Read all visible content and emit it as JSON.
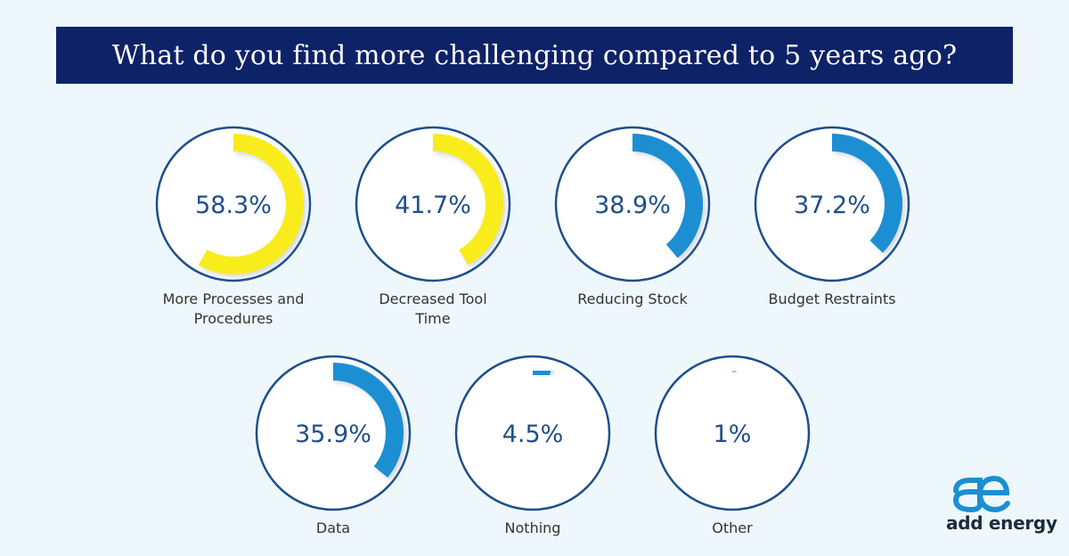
{
  "title": "What do you find more challenging compared to 5 years ago?",
  "colors": {
    "background": "#eef8fc",
    "title_bar": "#0e2267",
    "circle_stroke": "#1f4e8a",
    "value_text": "#1f4e8a",
    "label_text": "#333333",
    "yellow": "#f9ec1c",
    "blue": "#1a8fd2"
  },
  "chart_data": {
    "type": "donut",
    "title": "What do you find more challenging compared to 5 years ago?",
    "unit": "%",
    "items": [
      {
        "label": "More Processes and Procedures",
        "value": 58.3,
        "display": "58.3%",
        "color": "yellow"
      },
      {
        "label": "Decreased Tool Time",
        "value": 41.7,
        "display": "41.7%",
        "color": "yellow"
      },
      {
        "label": "Reducing Stock",
        "value": 38.9,
        "display": "38.9%",
        "color": "blue"
      },
      {
        "label": "Budget Restraints",
        "value": 37.2,
        "display": "37.2%",
        "color": "blue"
      },
      {
        "label": "Data",
        "value": 35.9,
        "display": "35.9%",
        "color": "blue"
      },
      {
        "label": "Nothing",
        "value": 4.5,
        "display": "4.5%",
        "color": "blue"
      },
      {
        "label": "Other",
        "value": 1,
        "display": "1%",
        "color": "blue"
      }
    ]
  },
  "logo": {
    "mark_icon": "ae-ligature-icon",
    "text": "add energy"
  }
}
